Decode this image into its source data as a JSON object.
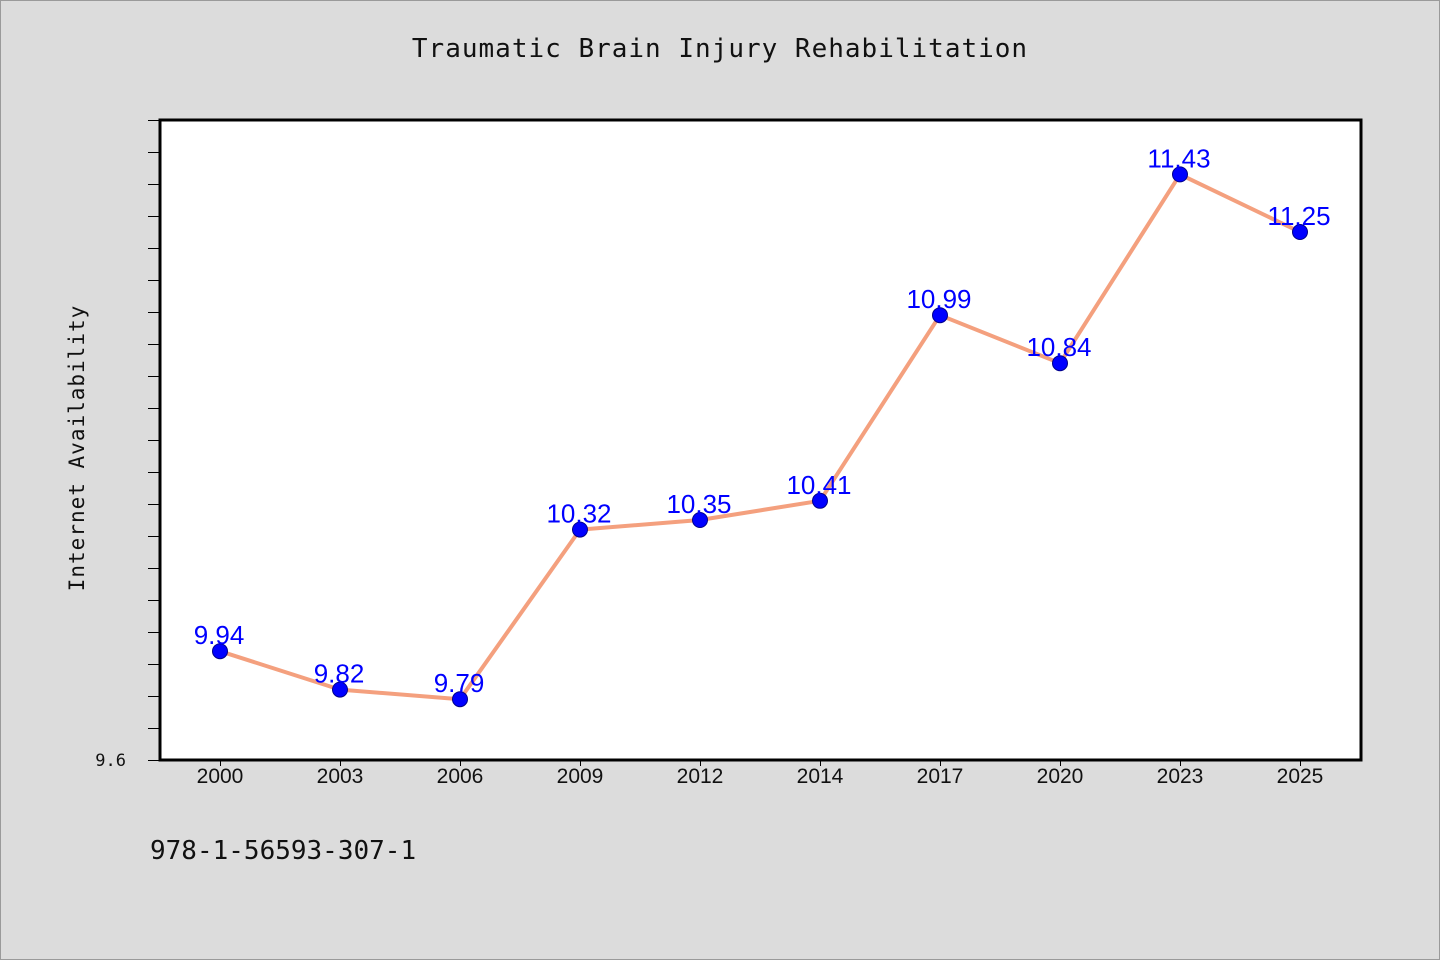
{
  "title": "Traumatic Brain Injury Rehabilitation",
  "footnote": "978-1-56593-307-1",
  "chart_data": {
    "type": "line",
    "title": "Traumatic Brain Injury Rehabilitation",
    "xlabel": "",
    "ylabel": "Internet Availability",
    "categories": [
      "2000",
      "2003",
      "2006",
      "2009",
      "2012",
      "2014",
      "2017",
      "2020",
      "2023",
      "2025"
    ],
    "series": [
      {
        "values": [
          9.94,
          9.82,
          9.79,
          10.32,
          10.35,
          10.41,
          10.99,
          10.84,
          11.43,
          11.25
        ],
        "line_color": "#f4a07e",
        "marker_color": "#0000ff"
      }
    ],
    "data_labels": [
      "9.94",
      "9.82",
      "9.79",
      "10.32",
      "10.35",
      "10.41",
      "10.99",
      "10.84",
      "11.43",
      "11.25"
    ],
    "y_min_label": "9.6",
    "ylim": [
      9.6,
      11.6
    ],
    "grid": false,
    "label_color": "#0000ff"
  }
}
